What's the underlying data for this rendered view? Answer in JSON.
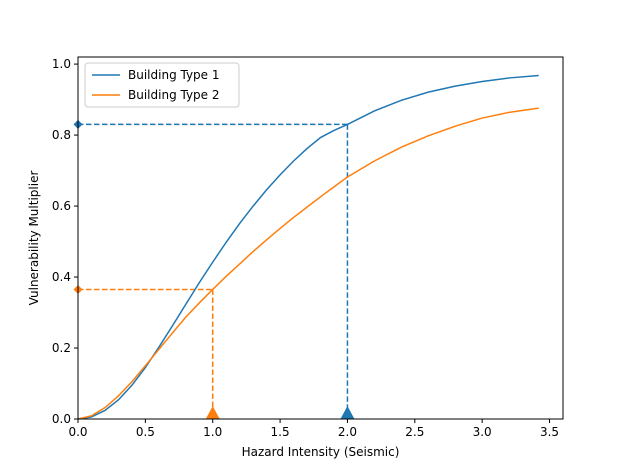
{
  "chart_data": {
    "type": "line",
    "title": "",
    "xlabel": "Hazard Intensity (Seismic)",
    "ylabel": "Vulnerability Multiplier",
    "xlim": [
      0,
      3.6
    ],
    "ylim": [
      0,
      1.02
    ],
    "xticks": [
      "0.0",
      "0.5",
      "1.0",
      "1.5",
      "2.0",
      "2.5",
      "3.0",
      "3.5"
    ],
    "yticks": [
      "0.0",
      "0.2",
      "0.4",
      "0.6",
      "0.8",
      "1.0"
    ],
    "grid": false,
    "legend_position": "top-left",
    "series": [
      {
        "name": "Building Type 1",
        "color": "#1f77b4",
        "x": [
          0.0,
          0.1,
          0.2,
          0.3,
          0.4,
          0.5,
          0.6,
          0.7,
          0.8,
          0.9,
          1.0,
          1.1,
          1.2,
          1.3,
          1.4,
          1.5,
          1.6,
          1.7,
          1.8,
          1.9,
          2.0,
          2.2,
          2.4,
          2.6,
          2.8,
          3.0,
          3.2,
          3.42
        ],
        "y": [
          0.0,
          0.006,
          0.024,
          0.054,
          0.095,
          0.145,
          0.202,
          0.262,
          0.323,
          0.384,
          0.442,
          0.498,
          0.551,
          0.6,
          0.646,
          0.688,
          0.727,
          0.762,
          0.793,
          0.813,
          0.83,
          0.868,
          0.898,
          0.921,
          0.938,
          0.951,
          0.961,
          0.968
        ]
      },
      {
        "name": "Building Type 2",
        "color": "#ff7f0e",
        "x": [
          0.0,
          0.1,
          0.2,
          0.3,
          0.4,
          0.5,
          0.6,
          0.7,
          0.8,
          0.9,
          1.0,
          1.1,
          1.2,
          1.3,
          1.4,
          1.5,
          1.6,
          1.7,
          1.8,
          1.9,
          2.0,
          2.2,
          2.4,
          2.6,
          2.8,
          3.0,
          3.2,
          3.42
        ],
        "y": [
          0.0,
          0.009,
          0.032,
          0.065,
          0.105,
          0.15,
          0.196,
          0.242,
          0.287,
          0.327,
          0.365,
          0.402,
          0.437,
          0.472,
          0.505,
          0.537,
          0.568,
          0.597,
          0.626,
          0.654,
          0.682,
          0.727,
          0.766,
          0.798,
          0.825,
          0.848,
          0.864,
          0.876
        ]
      }
    ],
    "markers": [
      {
        "series": "Building Type 1",
        "x": 2.0,
        "y": 0.83,
        "color": "#1f77b4"
      },
      {
        "series": "Building Type 2",
        "x": 1.0,
        "y": 0.365,
        "color": "#ff7f0e"
      }
    ]
  }
}
